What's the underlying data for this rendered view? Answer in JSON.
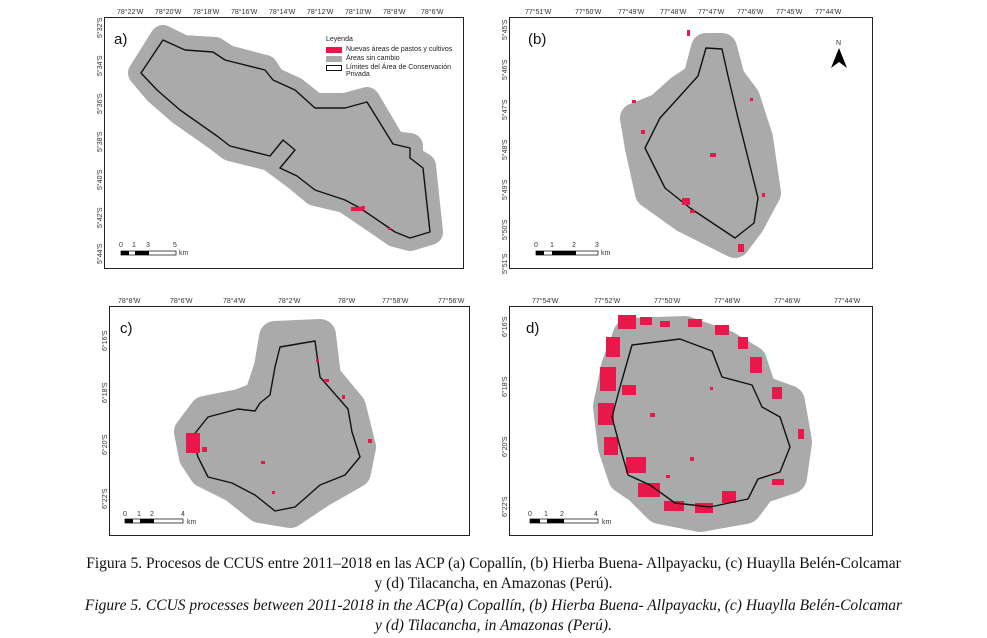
{
  "panels": {
    "a": {
      "label": "a)",
      "top_ticks": [
        "78°22'W",
        "78°20'W",
        "78°18'W",
        "78°16'W",
        "78°14'W",
        "78°12'W",
        "78°10'W",
        "78°8'W",
        "78°6'W"
      ],
      "left_ticks": [
        "5°32'S",
        "5°34'S",
        "5°36'S",
        "5°38'S",
        "5°40'S",
        "5°42'S",
        "5°44'S"
      ],
      "scale": {
        "ticks": [
          "0",
          "1",
          "3",
          "5"
        ],
        "unit": "km"
      }
    },
    "b": {
      "label": "(b)",
      "top_ticks": [
        "77°51'W",
        "77°50'W",
        "77°49'W",
        "77°48'W",
        "77°47'W",
        "77°46'W",
        "77°45'W",
        "77°44'W"
      ],
      "left_ticks": [
        "5°45'S",
        "5°46'S",
        "5°47'S",
        "5°48'S",
        "5°49'S",
        "5°50'S",
        "5°51'S"
      ],
      "scale": {
        "ticks": [
          "0",
          "1",
          "2",
          "3"
        ],
        "unit": "km"
      },
      "north": "N"
    },
    "c": {
      "label": "c)",
      "top_ticks": [
        "78°8'W",
        "78°6'W",
        "78°4'W",
        "78°2'W",
        "78°W",
        "77°58'W",
        "77°56'W"
      ],
      "left_ticks": [
        "6°16'S",
        "6°18'S",
        "6°20'S",
        "6°22'S"
      ],
      "scale": {
        "ticks": [
          "0",
          "1",
          "2",
          "4"
        ],
        "unit": "km"
      }
    },
    "d": {
      "label": "d)",
      "top_ticks": [
        "77°54'W",
        "77°52'W",
        "77°50'W",
        "77°48'W",
        "77°46'W",
        "77°44'W"
      ],
      "left_ticks": [
        "6°16'S",
        "6°18'S",
        "6°20'S",
        "6°22'S"
      ],
      "scale": {
        "ticks": [
          "0",
          "1",
          "2",
          "4"
        ],
        "unit": "km"
      }
    }
  },
  "legend": {
    "title": "Leyenda",
    "items": [
      {
        "label": "Nuevas áreas de pastos y cultivos",
        "color": "#e8194a"
      },
      {
        "label": "Áreas sin cambio",
        "color": "#aaaaaa"
      },
      {
        "label": "Límites del Área de Conservación Privada",
        "color": "#111111"
      }
    ]
  },
  "colors": {
    "buffer": "#aaaaaa",
    "change": "#e8194a",
    "boundary": "#111111"
  },
  "caption": {
    "es_line1": "Figura 5.  Procesos de CCUS entre 2011–2018 en las ACP (a) Copallín, (b) Hierba Buena- Allpayacku, (c) Huaylla Belén-Colcamar",
    "es_line2": "y (d) Tilacancha, en Amazonas (Perú).",
    "en_line1": "Figure 5. CCUS processes between 2011-2018 in the ACP(a) Copallín, (b) Hierba Buena- Allpayacku, (c) Huaylla Belén-Colcamar",
    "en_line2": "y (d) Tilacancha, in Amazonas (Perú)."
  }
}
